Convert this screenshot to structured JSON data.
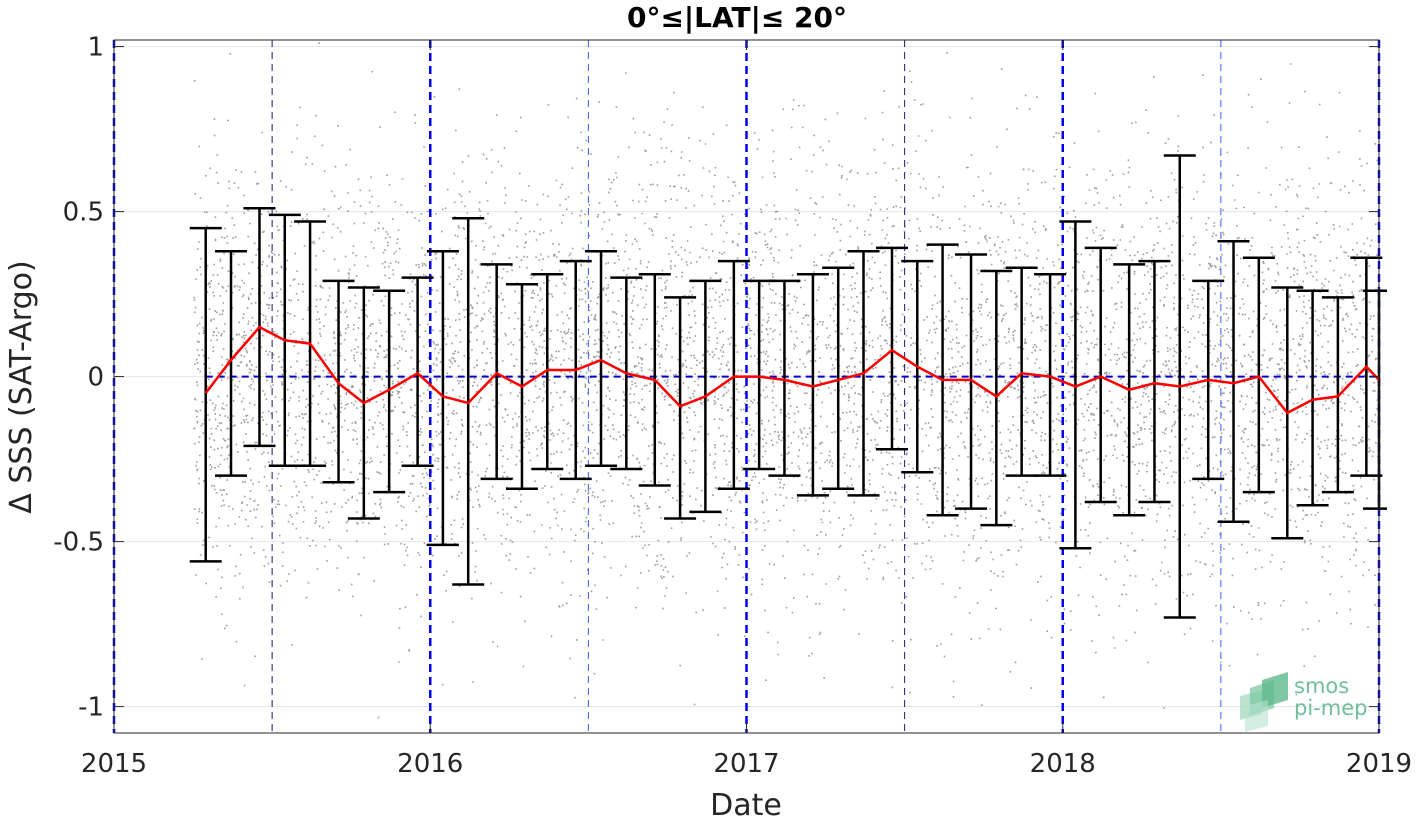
{
  "chart_data": {
    "type": "scatter",
    "title": "0°≤|LAT|≤ 20°",
    "xlabel": "Date",
    "ylabel": "Δ SSS (SAT-Argo)",
    "xlim": [
      2015,
      2019
    ],
    "ylim": [
      -1.08,
      1.02
    ],
    "x_ticks": [
      "2015",
      "2016",
      "2017",
      "2018",
      "2019"
    ],
    "y_ticks": [
      {
        "value": 1,
        "label": "1"
      },
      {
        "value": 0.5,
        "label": "0.5"
      },
      {
        "value": 0,
        "label": "0"
      },
      {
        "value": -0.5,
        "label": "-0.5"
      },
      {
        "value": -1,
        "label": "-1"
      }
    ],
    "grid": true,
    "zero_line": 0,
    "year_boundaries": [
      2015,
      2016,
      2017,
      2018,
      2019
    ],
    "half_year_lines": [
      2015.5,
      2016.5,
      2017.5,
      2018.5
    ],
    "scatter": {
      "description_count": 7000,
      "x_range": [
        2015.25,
        2019.0
      ],
      "spread_std": 0.33
    },
    "monthly": {
      "x": [
        2015.29,
        2015.37,
        2015.46,
        2015.54,
        2015.62,
        2015.71,
        2015.79,
        2015.87,
        2015.96,
        2016.04,
        2016.12,
        2016.21,
        2016.29,
        2016.37,
        2016.46,
        2016.54,
        2016.62,
        2016.71,
        2016.79,
        2016.87,
        2016.96,
        2017.04,
        2017.12,
        2017.21,
        2017.29,
        2017.37,
        2017.46,
        2017.54,
        2017.62,
        2017.71,
        2017.79,
        2017.87,
        2017.96,
        2018.04,
        2018.12,
        2018.21,
        2018.29,
        2018.37,
        2018.46,
        2018.54,
        2018.62,
        2018.71,
        2018.79,
        2018.87,
        2018.96,
        2019.0
      ],
      "mean": [
        -0.05,
        0.05,
        0.15,
        0.11,
        0.1,
        -0.02,
        -0.08,
        -0.04,
        0.01,
        -0.06,
        -0.08,
        0.01,
        -0.03,
        0.02,
        0.02,
        0.05,
        0.01,
        -0.01,
        -0.09,
        -0.06,
        0.0,
        0.0,
        -0.01,
        -0.03,
        -0.01,
        0.01,
        0.08,
        0.03,
        -0.01,
        -0.01,
        -0.06,
        0.01,
        0.0,
        -0.03,
        0.0,
        -0.04,
        -0.02,
        -0.03,
        -0.01,
        -0.02,
        0.0,
        -0.11,
        -0.07,
        -0.06,
        0.03,
        -0.01
      ],
      "upper": [
        0.45,
        0.38,
        0.51,
        0.49,
        0.47,
        0.29,
        0.27,
        0.26,
        0.3,
        0.38,
        0.48,
        0.34,
        0.28,
        0.31,
        0.35,
        0.38,
        0.3,
        0.31,
        0.24,
        0.29,
        0.35,
        0.29,
        0.29,
        0.31,
        0.33,
        0.38,
        0.39,
        0.35,
        0.4,
        0.37,
        0.32,
        0.33,
        0.31,
        0.47,
        0.39,
        0.34,
        0.35,
        0.67,
        0.29,
        0.41,
        0.36,
        0.27,
        0.26,
        0.24,
        0.36,
        0.26
      ],
      "lower": [
        -0.56,
        -0.3,
        -0.21,
        -0.27,
        -0.27,
        -0.32,
        -0.43,
        -0.35,
        -0.27,
        -0.51,
        -0.63,
        -0.31,
        -0.34,
        -0.28,
        -0.31,
        -0.27,
        -0.28,
        -0.33,
        -0.43,
        -0.41,
        -0.34,
        -0.28,
        -0.3,
        -0.36,
        -0.34,
        -0.36,
        -0.22,
        -0.29,
        -0.42,
        -0.4,
        -0.45,
        -0.3,
        -0.3,
        -0.52,
        -0.38,
        -0.42,
        -0.38,
        -0.73,
        -0.31,
        -0.44,
        -0.35,
        -0.49,
        -0.39,
        -0.35,
        -0.3,
        -0.4
      ]
    },
    "colors": {
      "scatter": "#8c8c8c",
      "mean_line": "#ff0000",
      "error_bars": "#000000",
      "year_lines": "#0000ee",
      "half_year_lines": "#3b5bff",
      "zero_line": "#0000cc",
      "grid": "#e6e6e6"
    }
  },
  "logo": {
    "line1": "smos",
    "line2": "pi-mep",
    "color": "#6fbf9a"
  }
}
